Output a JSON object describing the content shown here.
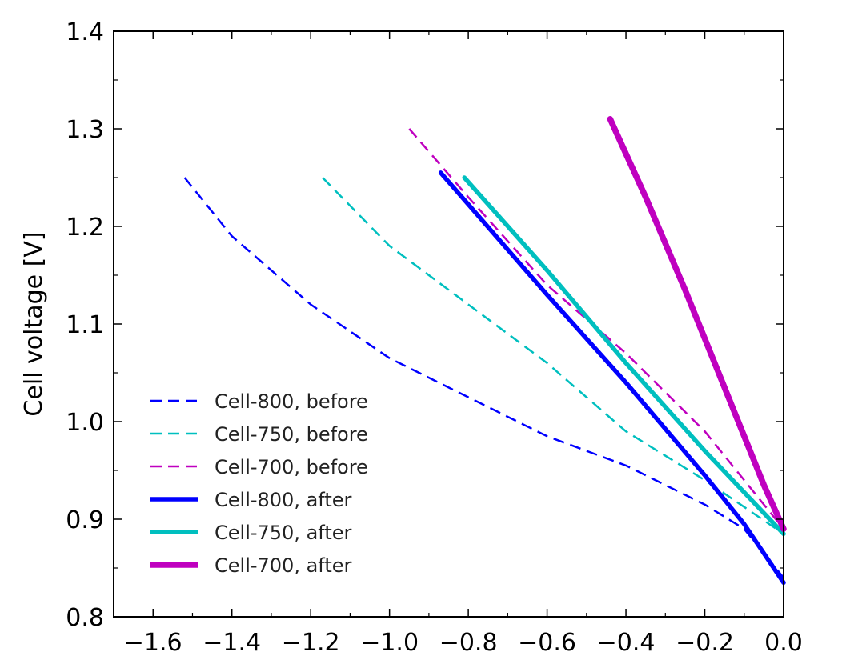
{
  "chart_data": {
    "type": "line",
    "title": "",
    "xlabel": "",
    "ylabel": "Cell voltage [V]",
    "xlim": [
      -1.7,
      0.0
    ],
    "ylim": [
      0.8,
      1.4
    ],
    "xticks": [
      -1.6,
      -1.4,
      -1.2,
      -1.0,
      -0.8,
      -0.6,
      -0.4,
      -0.2,
      0.0
    ],
    "xtick_labels": [
      "−1.6",
      "−1.4",
      "−1.2",
      "−1.0",
      "−0.8",
      "−0.6",
      "−0.4",
      "−0.2",
      "0.0"
    ],
    "yticks": [
      0.8,
      0.9,
      1.0,
      1.1,
      1.2,
      1.3,
      1.4
    ],
    "ytick_labels": [
      "0.8",
      "0.9",
      "1.0",
      "1.1",
      "1.2",
      "1.3",
      "1.4"
    ],
    "grid": false,
    "legend_position": "lower-left",
    "series": [
      {
        "name": "Cell-800, before",
        "color": "#0000ff",
        "style": "dashed",
        "width": "thin",
        "x": [
          -1.52,
          -1.4,
          -1.2,
          -1.0,
          -0.8,
          -0.6,
          -0.4,
          -0.2,
          -0.1,
          0.0
        ],
        "y": [
          1.25,
          1.19,
          1.12,
          1.065,
          1.025,
          0.985,
          0.955,
          0.915,
          0.89,
          0.84
        ]
      },
      {
        "name": "Cell-750, before",
        "color": "#00bfbf",
        "style": "dashed",
        "width": "thin",
        "x": [
          -1.17,
          -1.0,
          -0.8,
          -0.6,
          -0.4,
          -0.2,
          0.0
        ],
        "y": [
          1.25,
          1.18,
          1.12,
          1.06,
          0.99,
          0.94,
          0.885
        ]
      },
      {
        "name": "Cell-700, before",
        "color": "#bf00bf",
        "style": "dashed",
        "width": "thin",
        "x": [
          -0.95,
          -0.8,
          -0.6,
          -0.4,
          -0.2,
          0.0
        ],
        "y": [
          1.3,
          1.23,
          1.14,
          1.07,
          0.99,
          0.89
        ]
      },
      {
        "name": "Cell-800, after",
        "color": "#0000ff",
        "style": "solid",
        "width": "thick",
        "x": [
          -0.87,
          -0.6,
          -0.4,
          -0.2,
          -0.1,
          0.0
        ],
        "y": [
          1.255,
          1.13,
          1.04,
          0.945,
          0.895,
          0.835
        ]
      },
      {
        "name": "Cell-750, after",
        "color": "#00bfbf",
        "style": "solid",
        "width": "thick",
        "x": [
          -0.81,
          -0.6,
          -0.4,
          -0.2,
          0.0
        ],
        "y": [
          1.25,
          1.155,
          1.06,
          0.97,
          0.885
        ]
      },
      {
        "name": "Cell-700, after",
        "color": "#bf00bf",
        "style": "solid",
        "width": "extra-thick",
        "x": [
          -0.44,
          -0.35,
          -0.25,
          -0.15,
          -0.05,
          0.0
        ],
        "y": [
          1.31,
          1.23,
          1.135,
          1.035,
          0.935,
          0.89
        ]
      }
    ]
  }
}
